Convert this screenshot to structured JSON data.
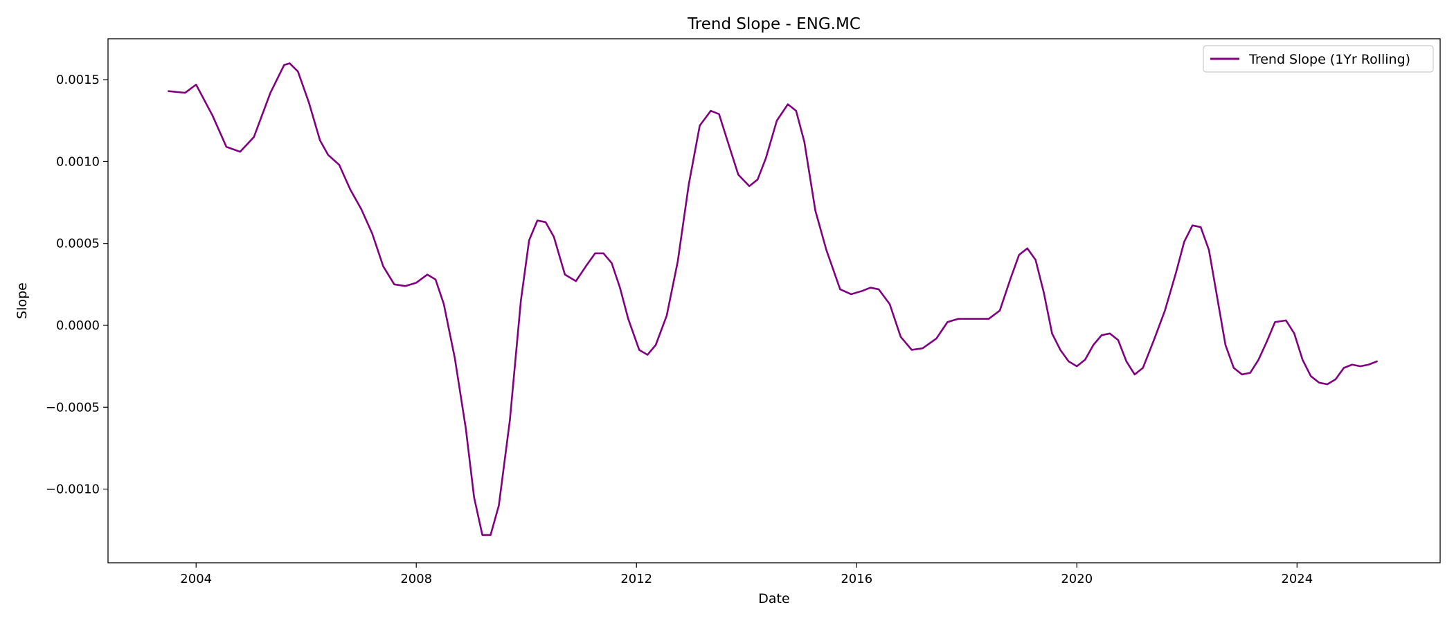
{
  "chart_data": {
    "type": "line",
    "title": "Trend Slope - ENG.MC",
    "xlabel": "Date",
    "ylabel": "Slope",
    "xlim": [
      2002.4,
      2026.6
    ],
    "ylim": [
      -0.00145,
      0.00175
    ],
    "xticks": [
      {
        "value": 2004,
        "label": "2004"
      },
      {
        "value": 2008,
        "label": "2008"
      },
      {
        "value": 2012,
        "label": "2012"
      },
      {
        "value": 2016,
        "label": "2016"
      },
      {
        "value": 2020,
        "label": "2020"
      },
      {
        "value": 2024,
        "label": "2024"
      }
    ],
    "yticks": [
      {
        "value": 0.0015,
        "label": "0.0015"
      },
      {
        "value": 0.001,
        "label": "0.0010"
      },
      {
        "value": 0.0005,
        "label": "0.0005"
      },
      {
        "value": 0.0,
        "label": "0.0000"
      },
      {
        "value": -0.0005,
        "label": "−0.0005"
      },
      {
        "value": -0.001,
        "label": "−0.0010"
      }
    ],
    "grid": false,
    "legend_position": "top-right",
    "series": [
      {
        "name": "Trend Slope (1Yr Rolling)",
        "color": "#800080",
        "x": [
          2003.5,
          2003.8,
          2004.0,
          2004.3,
          2004.55,
          2004.8,
          2005.05,
          2005.35,
          2005.6,
          2005.7,
          2005.85,
          2006.05,
          2006.25,
          2006.4,
          2006.6,
          2006.8,
          2007.0,
          2007.2,
          2007.4,
          2007.6,
          2007.8,
          2008.0,
          2008.2,
          2008.35,
          2008.5,
          2008.7,
          2008.9,
          2009.05,
          2009.2,
          2009.35,
          2009.5,
          2009.7,
          2009.9,
          2010.05,
          2010.2,
          2010.35,
          2010.5,
          2010.7,
          2010.9,
          2011.1,
          2011.25,
          2011.4,
          2011.55,
          2011.7,
          2011.85,
          2012.05,
          2012.2,
          2012.35,
          2012.55,
          2012.75,
          2012.95,
          2013.15,
          2013.35,
          2013.5,
          2013.65,
          2013.85,
          2014.05,
          2014.2,
          2014.35,
          2014.55,
          2014.75,
          2014.9,
          2015.05,
          2015.25,
          2015.45,
          2015.7,
          2015.9,
          2016.1,
          2016.25,
          2016.4,
          2016.6,
          2016.8,
          2017.0,
          2017.2,
          2017.45,
          2017.65,
          2017.85,
          2018.0,
          2018.2,
          2018.4,
          2018.6,
          2018.8,
          2018.95,
          2019.1,
          2019.25,
          2019.4,
          2019.55,
          2019.7,
          2019.85,
          2020.0,
          2020.15,
          2020.3,
          2020.45,
          2020.6,
          2020.75,
          2020.9,
          2021.05,
          2021.2,
          2021.4,
          2021.6,
          2021.8,
          2021.95,
          2022.1,
          2022.25,
          2022.4,
          2022.55,
          2022.7,
          2022.85,
          2023.0,
          2023.15,
          2023.3,
          2023.45,
          2023.6,
          2023.8,
          2023.95,
          2024.1,
          2024.25,
          2024.4,
          2024.55,
          2024.7,
          2024.85,
          2025.0,
          2025.15,
          2025.3,
          2025.45
        ],
        "y": [
          0.00143,
          0.00142,
          0.00147,
          0.00128,
          0.00109,
          0.00106,
          0.00115,
          0.00142,
          0.00159,
          0.0016,
          0.00155,
          0.00136,
          0.00113,
          0.00104,
          0.00098,
          0.00083,
          0.00071,
          0.00056,
          0.00036,
          0.00025,
          0.00024,
          0.00026,
          0.00031,
          0.00028,
          0.00013,
          -0.0002,
          -0.00063,
          -0.00105,
          -0.00128,
          -0.00128,
          -0.0011,
          -0.00058,
          0.00015,
          0.00052,
          0.00064,
          0.00063,
          0.00054,
          0.00031,
          0.00027,
          0.00037,
          0.00044,
          0.00044,
          0.00038,
          0.00023,
          4e-05,
          -0.00015,
          -0.00018,
          -0.00012,
          6e-05,
          0.00039,
          0.00086,
          0.00122,
          0.00131,
          0.00129,
          0.00113,
          0.00092,
          0.00085,
          0.00089,
          0.00102,
          0.00125,
          0.00135,
          0.00131,
          0.00112,
          0.0007,
          0.00046,
          0.00022,
          0.00019,
          0.00021,
          0.00023,
          0.00022,
          0.00013,
          -7e-05,
          -0.00015,
          -0.00014,
          -8e-05,
          2e-05,
          4e-05,
          4e-05,
          4e-05,
          4e-05,
          9e-05,
          0.00029,
          0.00043,
          0.00047,
          0.0004,
          0.0002,
          -5e-05,
          -0.00015,
          -0.00022,
          -0.00025,
          -0.00021,
          -0.00012,
          -6e-05,
          -5e-05,
          -9e-05,
          -0.00022,
          -0.0003,
          -0.00026,
          -9e-05,
          9e-05,
          0.00032,
          0.00051,
          0.00061,
          0.0006,
          0.00046,
          0.00017,
          -0.00012,
          -0.00026,
          -0.0003,
          -0.00029,
          -0.00021,
          -0.0001,
          2e-05,
          3e-05,
          -5e-05,
          -0.00021,
          -0.00031,
          -0.00035,
          -0.00036,
          -0.00033,
          -0.00026,
          -0.00024,
          -0.00025,
          -0.00024,
          -0.00022
        ]
      }
    ]
  }
}
